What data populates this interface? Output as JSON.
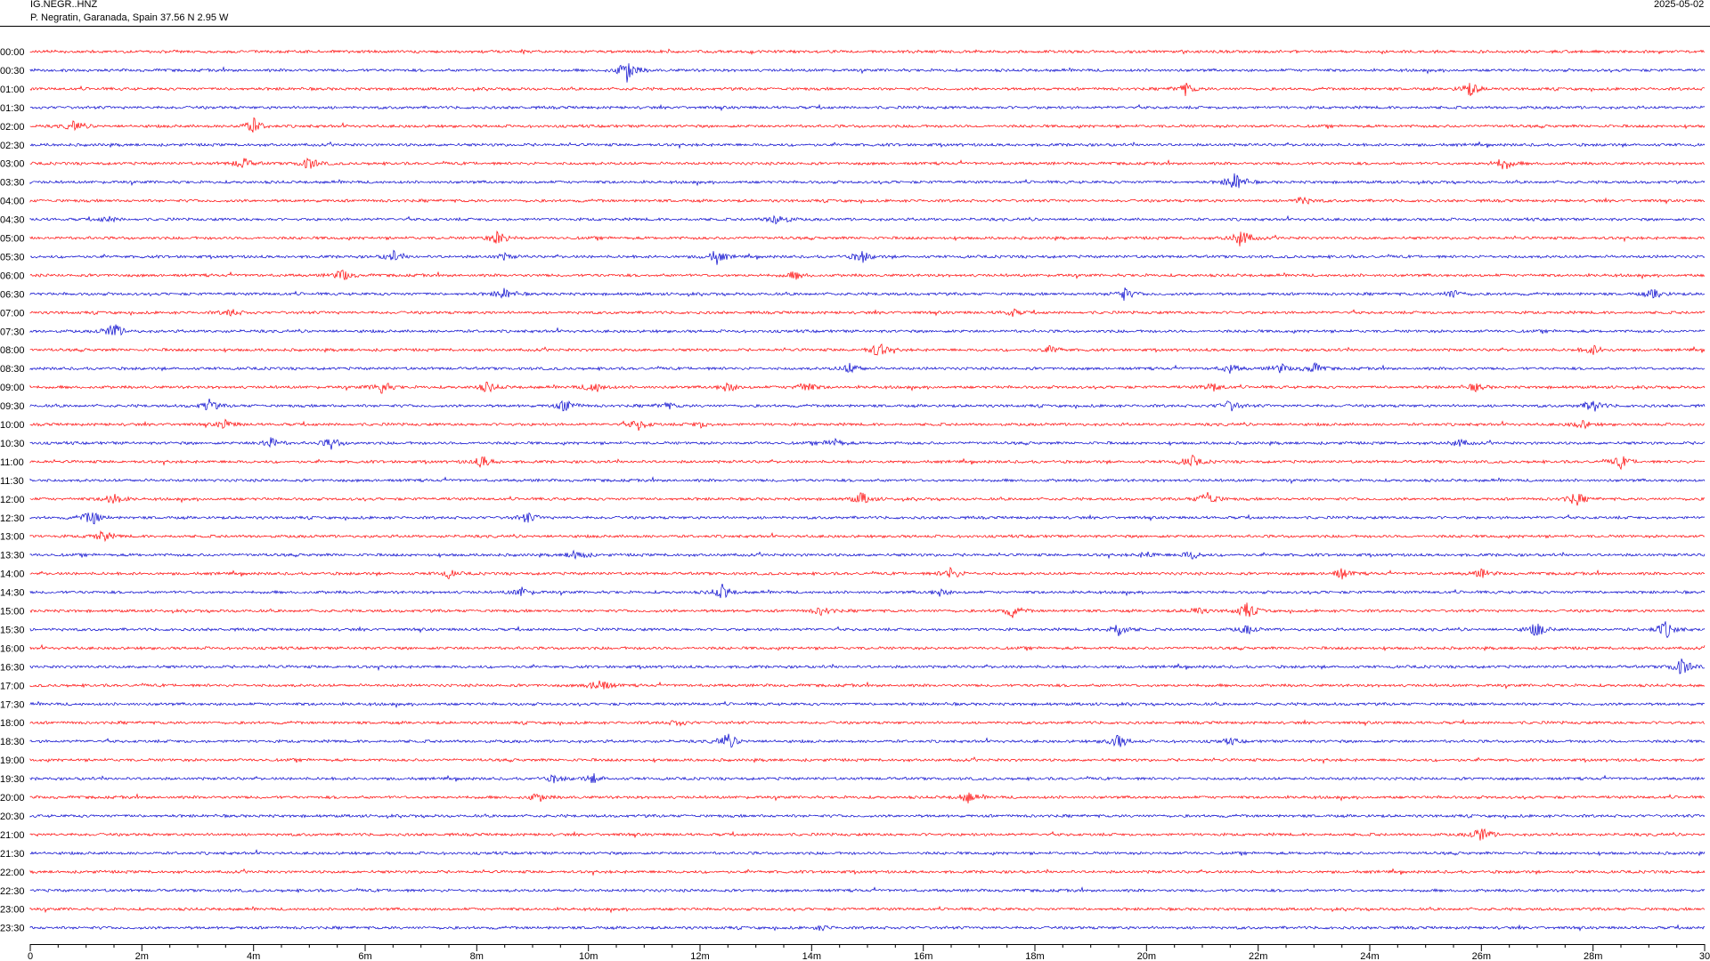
{
  "header": {
    "station": "IG.NEGR..HNZ",
    "location": "P. Negratin, Garanada, Spain  37.56 N 2.95 W",
    "date": "2025-05-02"
  },
  "colors": {
    "even_trace": "#ff0000",
    "odd_trace": "#0000cc",
    "axis": "#000000"
  },
  "chart_data": {
    "type": "line",
    "title": "IG.NEGR..HNZ",
    "subtitle": "P. Negratin, Garanada, Spain  37.56 N 2.95 W",
    "xlabel": "",
    "ylabel": "",
    "xlim": [
      0,
      30
    ],
    "x_unit": "minutes",
    "x_ticks": [
      0,
      2,
      4,
      6,
      8,
      10,
      12,
      14,
      16,
      18,
      20,
      22,
      24,
      26,
      28,
      30
    ],
    "x_tick_labels": [
      "0",
      "2m",
      "4m",
      "6m",
      "8m",
      "10m",
      "12m",
      "14m",
      "16m",
      "18m",
      "20m",
      "22m",
      "24m",
      "26m",
      "28m",
      "30"
    ],
    "x_minor_step": 0.5,
    "grid": false,
    "legend": "none",
    "series_colors": [
      "#ff0000",
      "#0000cc"
    ],
    "rows": [
      {
        "label": "00:00",
        "events": []
      },
      {
        "label": "00:30",
        "events": [
          [
            10.7,
            2.6
          ]
        ]
      },
      {
        "label": "01:00",
        "events": [
          [
            20.7,
            1.2
          ],
          [
            25.8,
            1.5
          ]
        ]
      },
      {
        "label": "01:30",
        "events": []
      },
      {
        "label": "02:00",
        "events": [
          [
            0.8,
            1.1
          ],
          [
            4.0,
            1.6
          ]
        ]
      },
      {
        "label": "02:30",
        "events": []
      },
      {
        "label": "03:00",
        "events": [
          [
            3.8,
            1.2
          ],
          [
            5.0,
            1.4
          ],
          [
            26.4,
            1.4
          ]
        ]
      },
      {
        "label": "03:30",
        "events": [
          [
            21.6,
            2.2
          ]
        ]
      },
      {
        "label": "04:00",
        "events": [
          [
            22.8,
            0.9
          ]
        ]
      },
      {
        "label": "04:30",
        "events": [
          [
            1.4,
            0.6
          ],
          [
            13.4,
            1.5
          ]
        ]
      },
      {
        "label": "05:00",
        "events": [
          [
            8.4,
            1.6
          ],
          [
            21.7,
            2.0
          ]
        ]
      },
      {
        "label": "05:30",
        "events": [
          [
            6.5,
            1.1
          ],
          [
            8.5,
            0.6
          ],
          [
            12.3,
            1.5
          ],
          [
            14.9,
            1.3
          ]
        ]
      },
      {
        "label": "06:00",
        "events": [
          [
            5.6,
            1.2
          ],
          [
            13.7,
            0.8
          ]
        ]
      },
      {
        "label": "06:30",
        "events": [
          [
            8.5,
            1.2
          ],
          [
            19.6,
            1.3
          ],
          [
            25.5,
            0.9
          ],
          [
            29.1,
            1.1
          ]
        ]
      },
      {
        "label": "07:00",
        "events": [
          [
            3.6,
            0.8
          ],
          [
            17.6,
            0.7
          ]
        ]
      },
      {
        "label": "07:30",
        "events": [
          [
            1.5,
            1.7
          ]
        ]
      },
      {
        "label": "08:00",
        "events": [
          [
            15.2,
            1.6
          ],
          [
            18.3,
            0.8
          ],
          [
            28.0,
            1.0
          ]
        ]
      },
      {
        "label": "08:30",
        "events": [
          [
            14.7,
            1.2
          ],
          [
            21.5,
            0.9
          ],
          [
            22.4,
            0.9
          ],
          [
            23.0,
            1.1
          ]
        ]
      },
      {
        "label": "09:00",
        "events": [
          [
            6.3,
            1.4
          ],
          [
            8.2,
            1.1
          ],
          [
            10.1,
            1.3
          ],
          [
            12.5,
            1.0
          ],
          [
            13.9,
            1.2
          ],
          [
            21.2,
            0.9
          ],
          [
            25.9,
            0.8
          ]
        ]
      },
      {
        "label": "09:30",
        "events": [
          [
            3.2,
            1.3
          ],
          [
            9.6,
            1.4
          ],
          [
            11.4,
            0.7
          ],
          [
            21.5,
            1.2
          ],
          [
            28.0,
            1.4
          ]
        ]
      },
      {
        "label": "10:00",
        "events": [
          [
            3.5,
            0.9
          ],
          [
            10.9,
            1.2
          ],
          [
            12.0,
            0.6
          ],
          [
            27.8,
            0.9
          ]
        ]
      },
      {
        "label": "10:30",
        "events": [
          [
            4.3,
            1.2
          ],
          [
            5.4,
            1.2
          ],
          [
            14.4,
            0.9
          ],
          [
            25.6,
            0.8
          ]
        ]
      },
      {
        "label": "11:00",
        "events": [
          [
            8.1,
            1.3
          ],
          [
            20.8,
            1.4
          ],
          [
            28.5,
            1.3
          ]
        ]
      },
      {
        "label": "11:30",
        "events": []
      },
      {
        "label": "12:00",
        "events": [
          [
            1.5,
            1.3
          ],
          [
            14.9,
            1.3
          ],
          [
            21.1,
            1.7
          ],
          [
            27.7,
            1.4
          ]
        ]
      },
      {
        "label": "12:30",
        "events": [
          [
            1.1,
            1.7
          ],
          [
            8.9,
            1.1
          ]
        ]
      },
      {
        "label": "13:00",
        "events": [
          [
            1.3,
            1.2
          ]
        ]
      },
      {
        "label": "13:30",
        "events": [
          [
            9.8,
            1.2
          ],
          [
            20.0,
            0.6
          ],
          [
            20.8,
            0.9
          ]
        ]
      },
      {
        "label": "14:00",
        "events": [
          [
            7.5,
            0.8
          ],
          [
            16.5,
            1.3
          ],
          [
            23.5,
            1.1
          ],
          [
            26.0,
            0.9
          ]
        ]
      },
      {
        "label": "14:30",
        "events": [
          [
            8.8,
            1.0
          ],
          [
            12.4,
            1.5
          ],
          [
            16.3,
            0.7
          ]
        ]
      },
      {
        "label": "15:00",
        "events": [
          [
            14.2,
            1.0
          ],
          [
            17.6,
            1.2
          ],
          [
            20.9,
            0.8
          ],
          [
            21.8,
            1.8
          ]
        ]
      },
      {
        "label": "15:30",
        "events": [
          [
            19.5,
            1.5
          ],
          [
            21.8,
            0.9
          ],
          [
            27.0,
            1.6
          ],
          [
            29.3,
            1.8
          ]
        ]
      },
      {
        "label": "16:00",
        "events": []
      },
      {
        "label": "16:30",
        "events": [
          [
            29.6,
            2.0
          ]
        ]
      },
      {
        "label": "17:00",
        "events": [
          [
            10.2,
            1.7
          ]
        ]
      },
      {
        "label": "17:30",
        "events": []
      },
      {
        "label": "18:00",
        "events": [
          [
            11.6,
            0.6
          ]
        ]
      },
      {
        "label": "18:30",
        "events": [
          [
            12.5,
            1.7
          ],
          [
            19.5,
            1.5
          ],
          [
            21.5,
            0.6
          ]
        ]
      },
      {
        "label": "19:00",
        "events": []
      },
      {
        "label": "19:30",
        "events": [
          [
            9.4,
            0.8
          ],
          [
            10.1,
            0.9
          ]
        ]
      },
      {
        "label": "20:00",
        "events": [
          [
            9.1,
            1.0
          ],
          [
            16.8,
            1.1
          ]
        ]
      },
      {
        "label": "20:30",
        "events": []
      },
      {
        "label": "21:00",
        "events": [
          [
            26.0,
            1.6
          ]
        ]
      },
      {
        "label": "21:30",
        "events": []
      },
      {
        "label": "22:00",
        "events": []
      },
      {
        "label": "22:30",
        "events": []
      },
      {
        "label": "23:00",
        "events": []
      },
      {
        "label": "23:30",
        "events": [
          [
            14.2,
            0.5
          ]
        ]
      }
    ]
  }
}
